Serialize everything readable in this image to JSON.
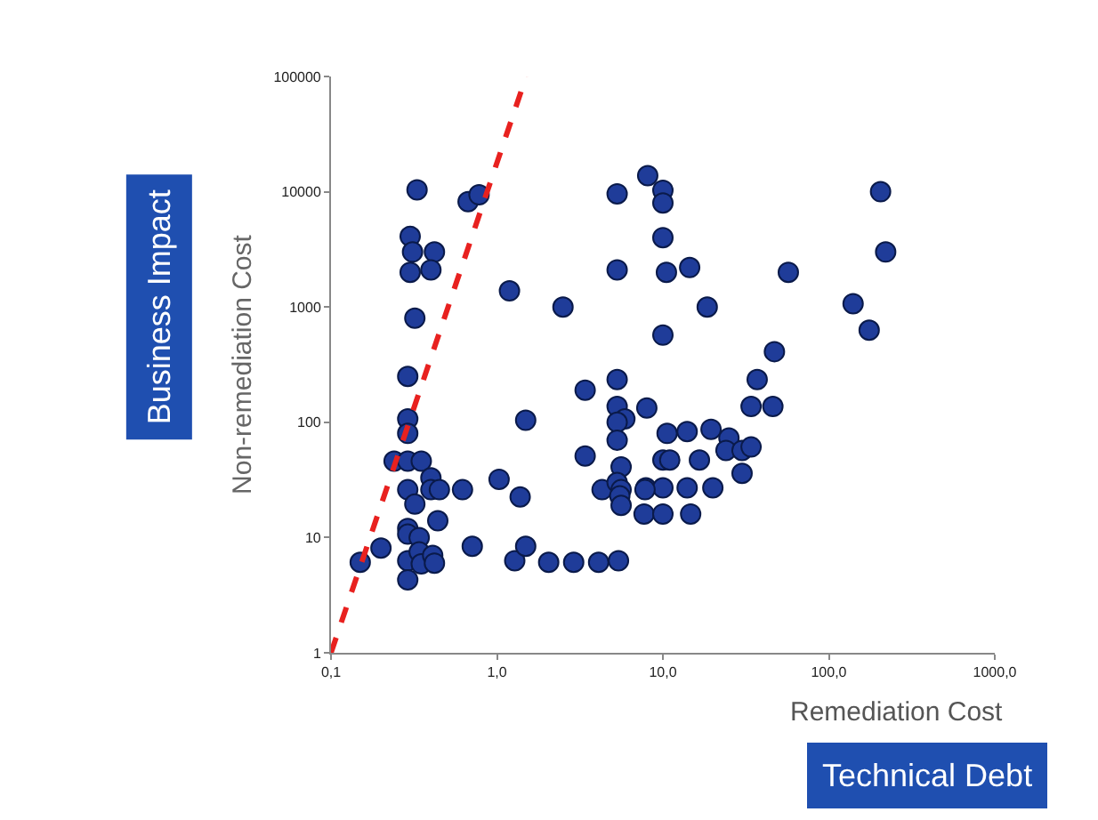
{
  "chart_data": {
    "type": "scatter",
    "xlabel": "Remediation Cost",
    "ylabel": "Non-remediation Cost",
    "annotations": [
      "Business Impact",
      "Technical Debt"
    ],
    "log": "xy",
    "grid": false,
    "xlim": [
      0.1,
      1000
    ],
    "ylim": [
      1,
      100000
    ],
    "xticks": [
      {
        "value": 0.1,
        "label": "0,1"
      },
      {
        "value": 1,
        "label": "1,0"
      },
      {
        "value": 10,
        "label": "10,0"
      },
      {
        "value": 100,
        "label": "100,0"
      },
      {
        "value": 1000,
        "label": "1000,0"
      }
    ],
    "yticks": [
      1,
      10,
      100,
      1000,
      10000,
      100000
    ],
    "series": [
      {
        "color": "#1f3c99",
        "marker": "circle",
        "x": [
          0.33,
          0.67,
          0.78,
          0.3,
          0.31,
          0.42,
          0.3,
          0.4,
          0.32,
          1.19,
          2.5,
          5.3,
          8.1,
          10,
          10,
          10,
          5.3,
          10.5,
          14.5,
          57,
          18.5,
          10,
          205,
          220,
          140,
          175,
          47,
          37,
          34,
          46,
          8,
          10.6,
          14,
          19.5,
          25,
          24,
          30,
          34,
          30,
          10,
          11,
          16.6,
          7.9,
          10,
          14,
          20,
          7.7,
          10,
          14.7,
          0.29,
          0.29,
          0.29,
          0.24,
          0.29,
          0.35,
          0.29,
          0.4,
          0.4,
          0.45,
          0.32,
          0.44,
          0.29,
          0.29,
          0.34,
          0.29,
          0.34,
          0.35,
          0.41,
          0.42,
          0.29,
          0.2,
          0.15,
          0.62,
          0.71,
          1.03,
          1.38,
          1.49,
          1.28,
          1.49,
          2.05,
          2.9,
          4.1,
          5.4,
          3.4,
          3.4,
          4.3,
          5.3,
          5.3,
          5.9,
          5.3,
          5.3,
          5.6,
          5.3,
          5.6,
          5.5,
          5.6,
          7.8
        ],
        "values": [
          10400,
          8200,
          9400,
          4100,
          3000,
          3000,
          2000,
          2100,
          800,
          1380,
          1000,
          9600,
          13800,
          10300,
          8000,
          4000,
          2100,
          2000,
          2200,
          2000,
          1000,
          570,
          10000,
          3000,
          1070,
          630,
          410,
          235,
          137,
          137,
          133,
          80,
          83,
          87,
          73,
          57,
          57,
          61,
          36,
          47,
          47,
          47,
          27,
          27,
          27,
          27,
          16,
          16,
          16,
          250,
          107,
          80,
          46,
          46,
          46,
          26,
          33,
          26,
          26,
          19.5,
          14,
          12,
          10.7,
          10,
          6.3,
          7.5,
          5.9,
          7,
          6,
          4.3,
          8.1,
          6.1,
          26,
          8.4,
          32,
          22.5,
          104,
          6.3,
          8.4,
          6.1,
          6.1,
          6.1,
          6.3,
          190,
          51,
          26,
          235,
          137,
          107,
          100,
          70,
          41,
          30,
          26,
          23,
          19,
          26
        ]
      },
      {
        "type": "line",
        "color": "#e8211f",
        "line_style": "dashed",
        "x": [
          0.1,
          1.5
        ],
        "values": [
          1,
          100000
        ]
      }
    ]
  }
}
